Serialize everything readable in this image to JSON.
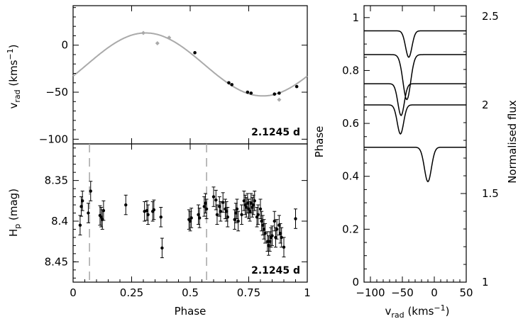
{
  "chart_data": [
    {
      "type": "scatter",
      "panel": "radial-velocity",
      "ylabel": "v",
      "ylabel_sub": "rad",
      "ylabel_unit_pre": "(kms",
      "ylabel_unit_sup": "−1",
      "ylabel_unit_post": ")",
      "annotation": "2.1245 d",
      "xlim": [
        0,
        1
      ],
      "ylim": [
        -105,
        42
      ],
      "yticks": [
        0,
        -50,
        -100
      ],
      "ytick_labels": [
        "0",
        "−50",
        "−100"
      ],
      "model_curve": {
        "mean": -20.5,
        "amplitude": 33.5,
        "phase_of_max": 0.31,
        "color": "#aaaaaa"
      },
      "series": [
        {
          "color": "#aaaaaa",
          "points": [
            [
              0.3,
              13
            ],
            [
              0.36,
              2
            ],
            [
              0.41,
              8
            ],
            [
              0.88,
              -58
            ]
          ]
        },
        {
          "color": "#000000",
          "points": [
            [
              0.52,
              -8
            ],
            [
              0.665,
              -40
            ],
            [
              0.678,
              -42
            ],
            [
              0.745,
              -50
            ],
            [
              0.76,
              -51
            ],
            [
              0.86,
              -52
            ],
            [
              0.88,
              -51
            ],
            [
              0.955,
              -44
            ]
          ]
        }
      ]
    },
    {
      "type": "scatter",
      "panel": "photometry",
      "xlabel": "Phase",
      "ylabel": "H",
      "ylabel_sub": "p",
      "ylabel_unit": "(mag)",
      "annotation": "2.1245 d",
      "xlim": [
        0,
        1
      ],
      "ylim": [
        8.475,
        8.305
      ],
      "xticks": [
        0,
        0.25,
        0.5,
        0.75,
        1
      ],
      "xtick_labels": [
        "0",
        "0.25",
        "0.5",
        "0.75",
        "1"
      ],
      "yticks": [
        8.35,
        8.4,
        8.45
      ],
      "ytick_labels": [
        "8.35",
        "8.4",
        "8.45"
      ],
      "vlines": [
        0.07,
        0.57
      ],
      "error_bar": 0.012,
      "points": [
        [
          0.03,
          8.405
        ],
        [
          0.035,
          8.382
        ],
        [
          0.04,
          8.375
        ],
        [
          0.065,
          8.39
        ],
        [
          0.075,
          8.363
        ],
        [
          0.115,
          8.393
        ],
        [
          0.12,
          8.395
        ],
        [
          0.125,
          8.398
        ],
        [
          0.13,
          8.387
        ],
        [
          0.225,
          8.38
        ],
        [
          0.305,
          8.388
        ],
        [
          0.315,
          8.387
        ],
        [
          0.32,
          8.392
        ],
        [
          0.34,
          8.388
        ],
        [
          0.345,
          8.386
        ],
        [
          0.375,
          8.395
        ],
        [
          0.38,
          8.433
        ],
        [
          0.495,
          8.398
        ],
        [
          0.5,
          8.4
        ],
        [
          0.505,
          8.396
        ],
        [
          0.535,
          8.392
        ],
        [
          0.54,
          8.396
        ],
        [
          0.56,
          8.382
        ],
        [
          0.565,
          8.378
        ],
        [
          0.57,
          8.385
        ],
        [
          0.6,
          8.37
        ],
        [
          0.61,
          8.374
        ],
        [
          0.615,
          8.392
        ],
        [
          0.625,
          8.382
        ],
        [
          0.63,
          8.388
        ],
        [
          0.64,
          8.377
        ],
        [
          0.65,
          8.385
        ],
        [
          0.655,
          8.388
        ],
        [
          0.66,
          8.395
        ],
        [
          0.69,
          8.398
        ],
        [
          0.695,
          8.39
        ],
        [
          0.7,
          8.385
        ],
        [
          0.705,
          8.4
        ],
        [
          0.72,
          8.392
        ],
        [
          0.73,
          8.375
        ],
        [
          0.735,
          8.38
        ],
        [
          0.74,
          8.383
        ],
        [
          0.745,
          8.378
        ],
        [
          0.75,
          8.385
        ],
        [
          0.755,
          8.388
        ],
        [
          0.76,
          8.378
        ],
        [
          0.765,
          8.383
        ],
        [
          0.77,
          8.38
        ],
        [
          0.775,
          8.375
        ],
        [
          0.785,
          8.395
        ],
        [
          0.79,
          8.392
        ],
        [
          0.8,
          8.385
        ],
        [
          0.805,
          8.4
        ],
        [
          0.81,
          8.405
        ],
        [
          0.815,
          8.41
        ],
        [
          0.82,
          8.415
        ],
        [
          0.83,
          8.425
        ],
        [
          0.835,
          8.43
        ],
        [
          0.84,
          8.425
        ],
        [
          0.845,
          8.42
        ],
        [
          0.85,
          8.418
        ],
        [
          0.86,
          8.4
        ],
        [
          0.865,
          8.42
        ],
        [
          0.87,
          8.41
        ],
        [
          0.88,
          8.405
        ],
        [
          0.885,
          8.415
        ],
        [
          0.89,
          8.42
        ],
        [
          0.9,
          8.432
        ],
        [
          0.95,
          8.397
        ]
      ]
    },
    {
      "type": "line",
      "panel": "line-profiles",
      "xlabel": "v",
      "xlabel_sub": "rad",
      "xlabel_unit_pre": "(kms",
      "xlabel_unit_sup": "−1",
      "xlabel_unit_post": ")",
      "ylabel": "Phase",
      "ylabel_right": "Normalised flux",
      "xlim": [
        -110,
        50
      ],
      "ylim": [
        0,
        1.045
      ],
      "ylim_right": [
        1.0,
        2.56
      ],
      "xticks": [
        -100,
        -50,
        0,
        50
      ],
      "xtick_labels": [
        "−100",
        "−50",
        "0",
        "50"
      ],
      "yticks": [
        0,
        0.2,
        0.4,
        0.6,
        0.8,
        1
      ],
      "ytick_labels": [
        "0",
        "0.2",
        "0.4",
        "0.6",
        "0.8",
        "1"
      ],
      "yticks_right": [
        1,
        1.5,
        2,
        2.5
      ],
      "ytick_labels_right": [
        "1",
        "1.5",
        "2",
        "2.5"
      ],
      "profiles": [
        {
          "phase": 0.95,
          "center": -40,
          "depth": 0.1,
          "width": 5
        },
        {
          "phase": 0.86,
          "center": -43,
          "depth": 0.17,
          "width": 6
        },
        {
          "phase": 0.75,
          "center": -52,
          "depth": 0.12,
          "width": 5
        },
        {
          "phase": 0.67,
          "center": -53,
          "depth": 0.11,
          "width": 5
        },
        {
          "phase": 0.51,
          "center": -10,
          "depth": 0.13,
          "width": 5.5
        }
      ]
    }
  ]
}
